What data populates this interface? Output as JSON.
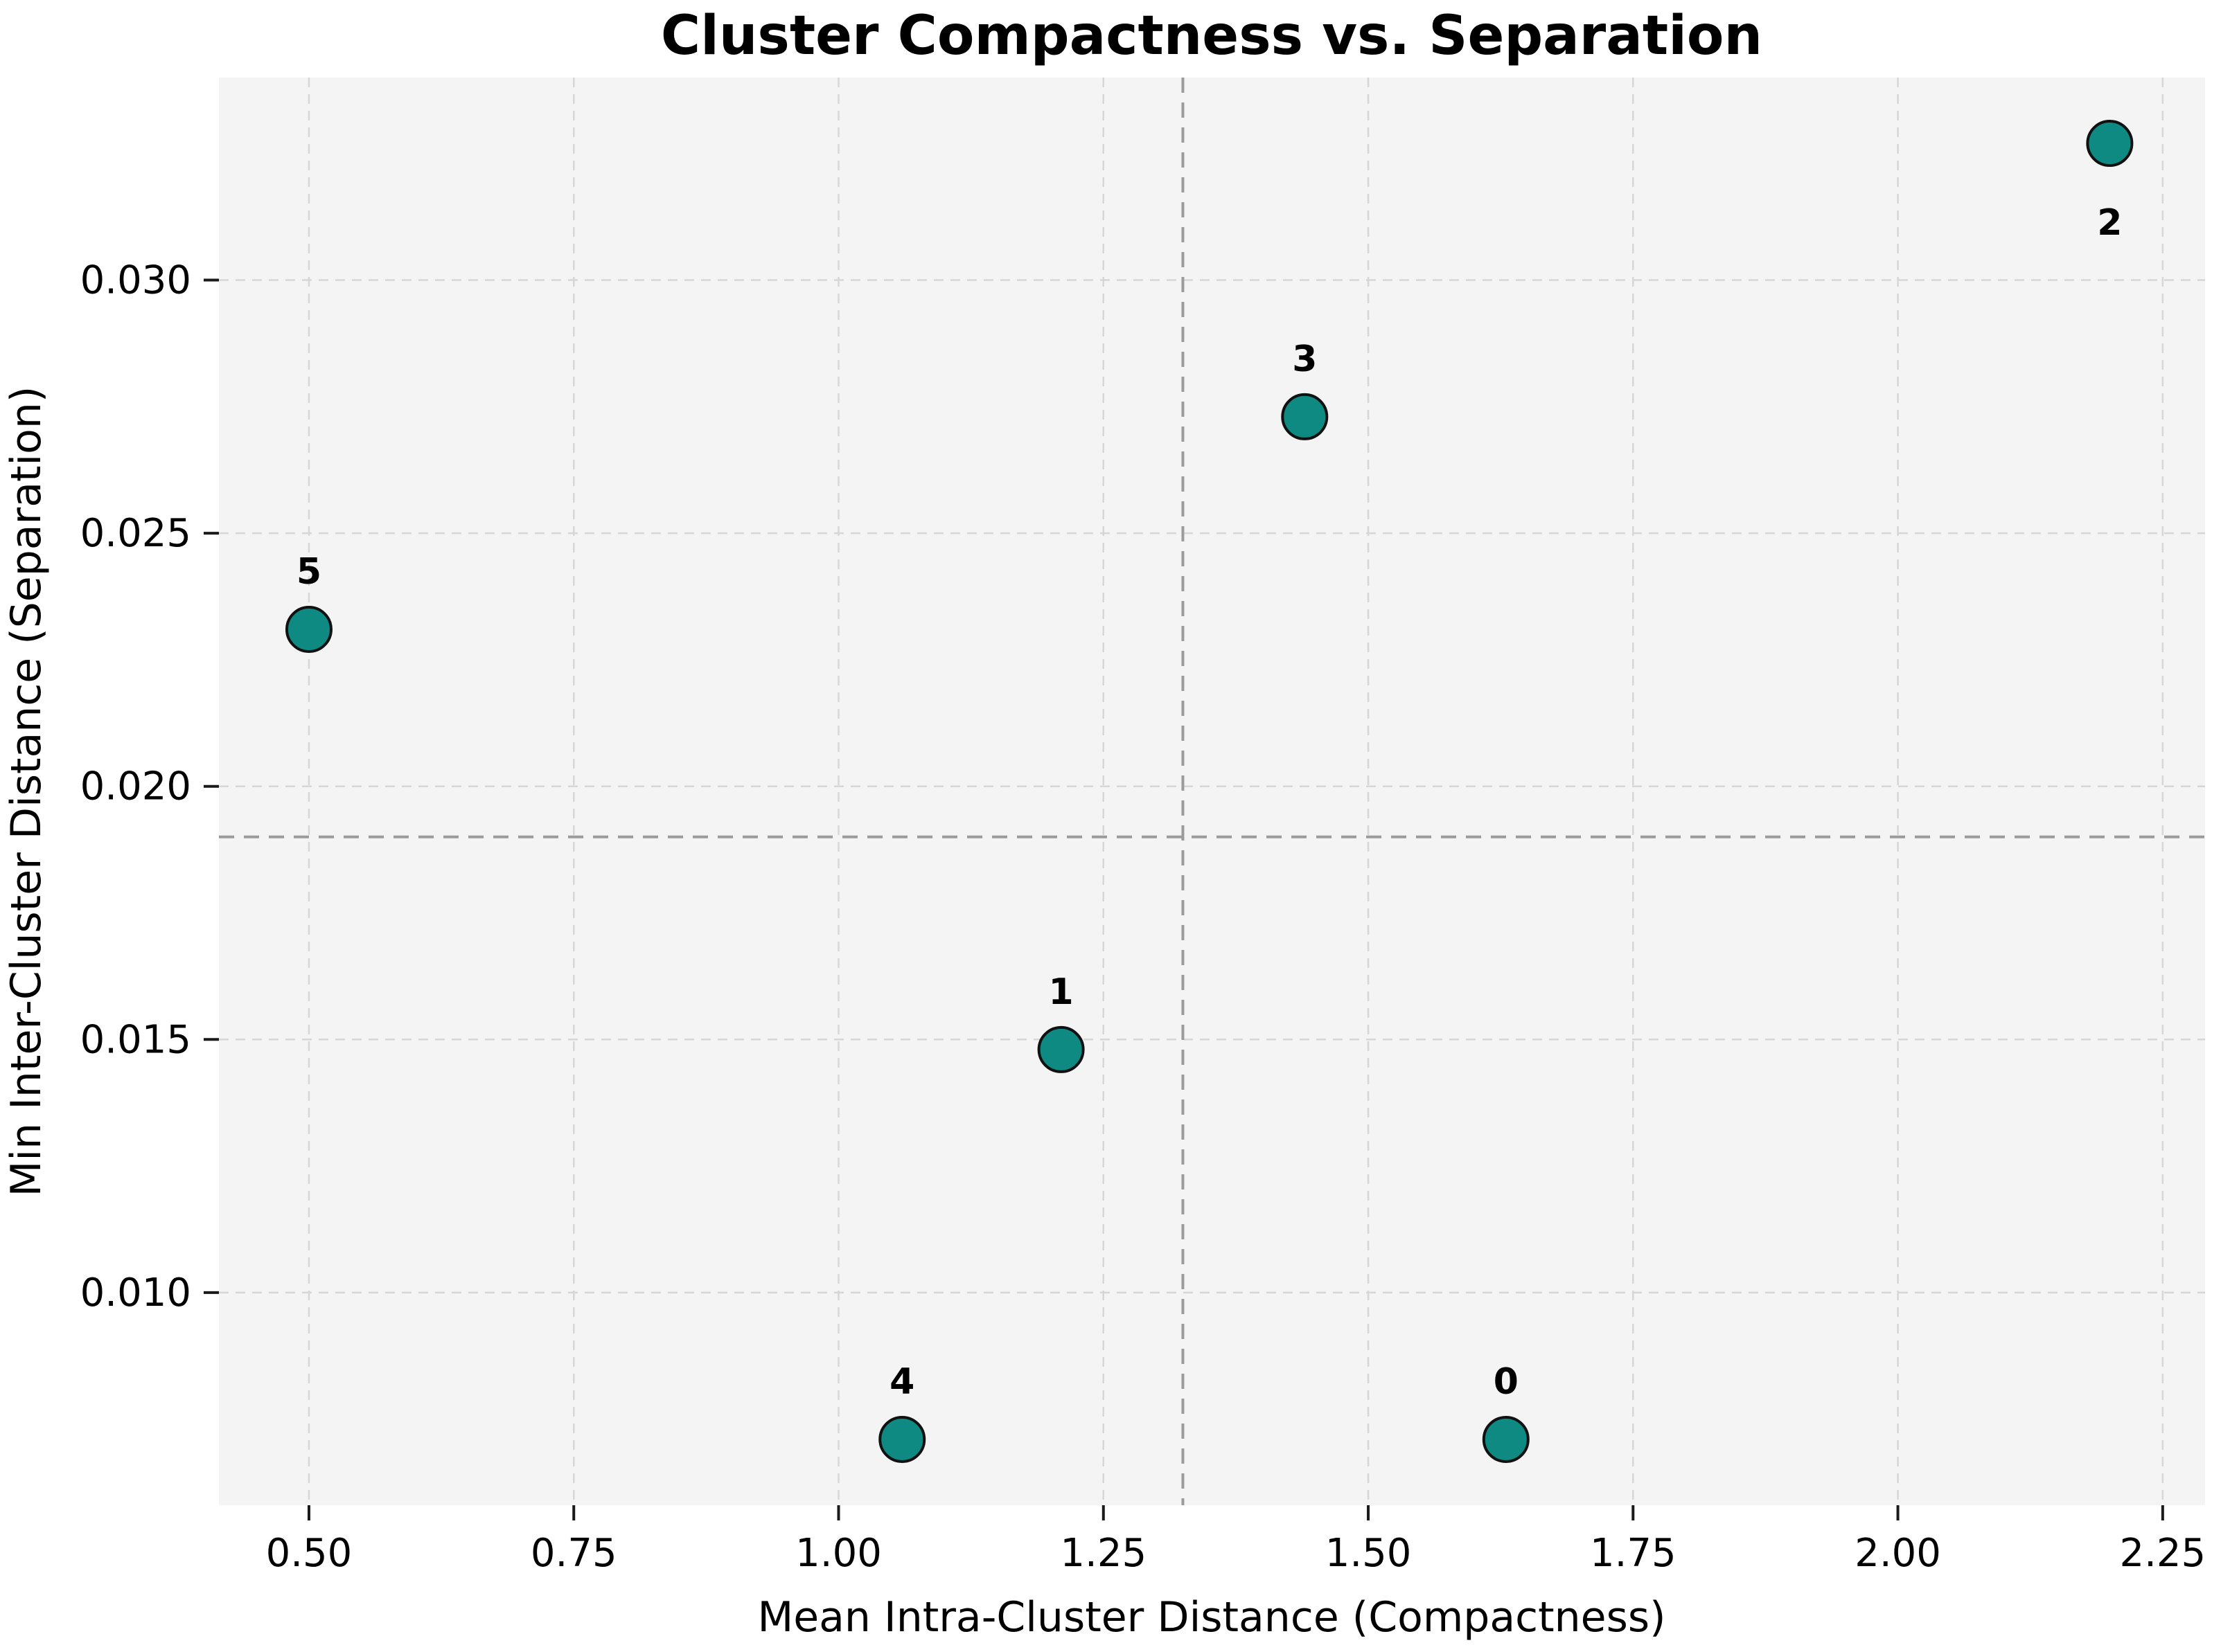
{
  "chart_data": {
    "type": "scatter",
    "title": "Cluster Compactness vs. Separation",
    "xlabel": "Mean Intra-Cluster Distance (Compactness)",
    "ylabel": "Min Inter-Cluster Distance (Separation)",
    "xlim": [
      0.415,
      2.29
    ],
    "ylim": [
      0.0058,
      0.034
    ],
    "xticks": [
      0.5,
      0.75,
      1.0,
      1.25,
      1.5,
      1.75,
      2.0,
      2.25
    ],
    "xtick_labels": [
      "0.50",
      "0.75",
      "1.00",
      "1.25",
      "1.50",
      "1.75",
      "2.00",
      "2.25"
    ],
    "yticks": [
      0.01,
      0.015,
      0.02,
      0.025,
      0.03
    ],
    "ytick_labels": [
      "0.010",
      "0.015",
      "0.020",
      "0.025",
      "0.030"
    ],
    "grid": true,
    "legend": "none",
    "points": [
      {
        "label": "0",
        "x": 1.63,
        "y": 0.0071,
        "label_position": "above"
      },
      {
        "label": "1",
        "x": 1.21,
        "y": 0.0148,
        "label_position": "above"
      },
      {
        "label": "2",
        "x": 2.2,
        "y": 0.0327,
        "label_position": "below"
      },
      {
        "label": "3",
        "x": 1.44,
        "y": 0.0273,
        "label_position": "above"
      },
      {
        "label": "4",
        "x": 1.06,
        "y": 0.0071,
        "label_position": "above"
      },
      {
        "label": "5",
        "x": 0.5,
        "y": 0.0231,
        "label_position": "above"
      }
    ],
    "reference_lines": {
      "median_x": 1.325,
      "median_y": 0.019
    },
    "colors": {
      "point_fill": "#0e8a83",
      "point_edge": "#111111",
      "grid": "#d6d6d6",
      "reference": "#9b9b9b",
      "plot_bg": "#f4f4f5",
      "figure_bg": "#ffffff",
      "tick": "#1a1a1a"
    }
  }
}
